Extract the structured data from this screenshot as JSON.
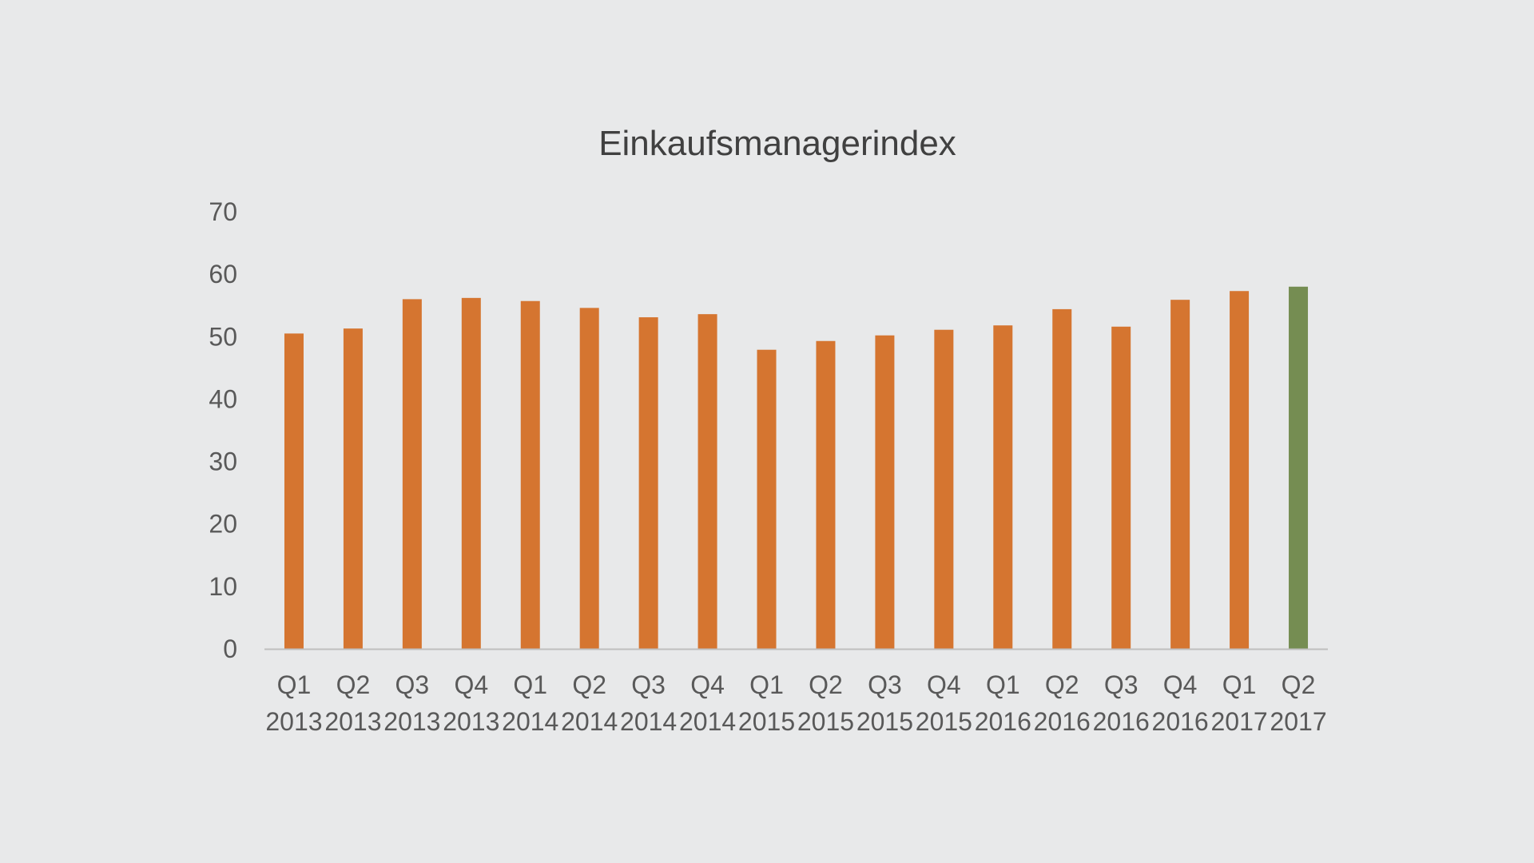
{
  "chart_data": {
    "type": "bar",
    "title": "Einkaufsmanagerindex",
    "xlabel": "",
    "ylabel": "",
    "ylim": [
      0,
      70
    ],
    "yticks": [
      0,
      10,
      20,
      30,
      40,
      50,
      60,
      70
    ],
    "grid": false,
    "legend": "none",
    "categories": [
      [
        "Q1",
        "2013"
      ],
      [
        "Q2",
        "2013"
      ],
      [
        "Q3",
        "2013"
      ],
      [
        "Q4",
        "2013"
      ],
      [
        "Q1",
        "2014"
      ],
      [
        "Q2",
        "2014"
      ],
      [
        "Q3",
        "2014"
      ],
      [
        "Q4",
        "2014"
      ],
      [
        "Q1",
        "2015"
      ],
      [
        "Q2",
        "2015"
      ],
      [
        "Q3",
        "2015"
      ],
      [
        "Q4",
        "2015"
      ],
      [
        "Q1",
        "2016"
      ],
      [
        "Q2",
        "2016"
      ],
      [
        "Q3",
        "2016"
      ],
      [
        "Q4",
        "2016"
      ],
      [
        "Q1",
        "2017"
      ],
      [
        "Q2",
        "2017"
      ]
    ],
    "values": [
      50.5,
      51.3,
      56.0,
      56.2,
      55.7,
      54.6,
      53.1,
      53.6,
      47.9,
      49.3,
      50.2,
      51.1,
      51.8,
      54.4,
      51.6,
      55.9,
      57.3,
      58.0
    ],
    "colors": {
      "default": "#d57530",
      "highlight": "#758d52",
      "axis": "#bfbfbf"
    },
    "highlight_index": 17
  }
}
